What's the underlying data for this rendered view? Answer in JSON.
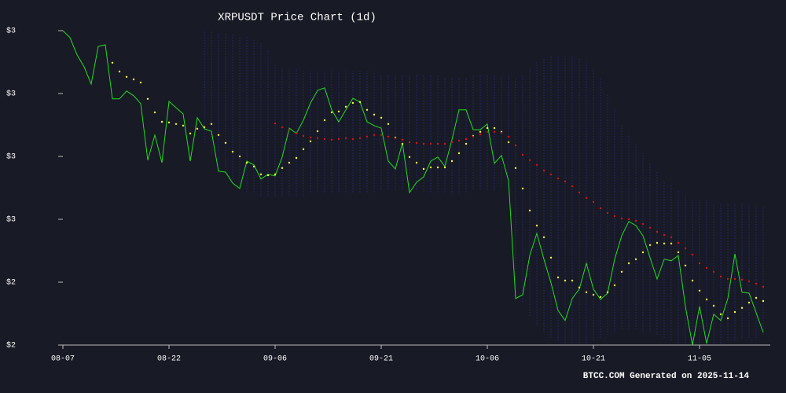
{
  "chart_data": {
    "type": "line",
    "title": "XRPUSDT Price Chart (1d)",
    "footer": "BTCC.COM Generated on 2025-11-14",
    "x": [
      "08-07",
      "08-08",
      "08-09",
      "08-10",
      "08-11",
      "08-12",
      "08-13",
      "08-14",
      "08-15",
      "08-16",
      "08-17",
      "08-18",
      "08-19",
      "08-20",
      "08-21",
      "08-22",
      "08-23",
      "08-24",
      "08-25",
      "08-26",
      "08-27",
      "08-28",
      "08-29",
      "08-30",
      "08-31",
      "09-01",
      "09-02",
      "09-03",
      "09-04",
      "09-05",
      "09-06",
      "09-07",
      "09-08",
      "09-09",
      "09-10",
      "09-11",
      "09-12",
      "09-13",
      "09-14",
      "09-15",
      "09-16",
      "09-17",
      "09-18",
      "09-19",
      "09-20",
      "09-21",
      "09-22",
      "09-23",
      "09-24",
      "09-25",
      "09-26",
      "09-27",
      "09-28",
      "09-29",
      "09-30",
      "10-01",
      "10-02",
      "10-03",
      "10-04",
      "10-05",
      "10-06",
      "10-07",
      "10-08",
      "10-09",
      "10-10",
      "10-11",
      "10-12",
      "10-13",
      "10-14",
      "10-15",
      "10-16",
      "10-17",
      "10-18",
      "10-19",
      "10-20",
      "10-21",
      "10-22",
      "10-23",
      "10-24",
      "10-25",
      "10-26",
      "10-27",
      "10-28",
      "10-29",
      "10-30",
      "10-31",
      "11-01",
      "11-02",
      "11-03",
      "11-04",
      "11-05",
      "11-06",
      "11-07",
      "11-08",
      "11-09",
      "11-10",
      "11-11",
      "11-12",
      "11-13",
      "11-14"
    ],
    "xticks": [
      "08-07",
      "08-22",
      "09-06",
      "09-21",
      "10-06",
      "10-21",
      "11-05"
    ],
    "ylim": [
      2.2,
      3.2
    ],
    "yticks": [
      {
        "value": 3.2,
        "label": "$3"
      },
      {
        "value": 3.0,
        "label": "$3"
      },
      {
        "value": 2.8,
        "label": "$3"
      },
      {
        "value": 2.6,
        "label": "$3"
      },
      {
        "value": 2.4,
        "label": "$2"
      },
      {
        "value": 2.2,
        "label": "$2"
      }
    ],
    "band": {
      "color": "#25257a",
      "upper": [
        null,
        null,
        null,
        null,
        null,
        null,
        null,
        null,
        null,
        null,
        null,
        null,
        null,
        null,
        null,
        null,
        null,
        null,
        null,
        null,
        3.2,
        3.2,
        3.19,
        3.19,
        3.19,
        3.18,
        3.18,
        3.17,
        3.16,
        3.14,
        3.09,
        3.08,
        3.08,
        3.08,
        3.07,
        3.07,
        3.07,
        3.07,
        3.07,
        3.07,
        3.07,
        3.07,
        3.07,
        3.07,
        3.07,
        3.06,
        3.06,
        3.06,
        3.06,
        3.06,
        3.06,
        3.06,
        3.06,
        3.06,
        3.05,
        3.05,
        3.05,
        3.05,
        3.06,
        3.06,
        3.06,
        3.06,
        3.06,
        3.06,
        3.05,
        3.06,
        3.08,
        3.1,
        3.11,
        3.12,
        3.12,
        3.12,
        3.12,
        3.11,
        3.1,
        3.08,
        3.05,
        3.0,
        2.95,
        2.9,
        2.87,
        2.84,
        2.81,
        2.78,
        2.75,
        2.72,
        2.71,
        2.69,
        2.68,
        2.66,
        2.66,
        2.66,
        2.65,
        2.65,
        2.65,
        2.65,
        2.65,
        2.65,
        2.64,
        2.64
      ],
      "lower": [
        null,
        null,
        null,
        null,
        null,
        null,
        null,
        null,
        null,
        null,
        null,
        null,
        null,
        null,
        null,
        null,
        null,
        null,
        null,
        null,
        2.84,
        2.8,
        2.77,
        2.74,
        2.72,
        2.7,
        2.68,
        2.68,
        2.67,
        2.67,
        2.67,
        2.67,
        2.67,
        2.67,
        2.67,
        2.68,
        2.68,
        2.68,
        2.68,
        2.68,
        2.68,
        2.68,
        2.68,
        2.68,
        2.68,
        2.69,
        2.69,
        2.69,
        2.69,
        2.69,
        2.69,
        2.68,
        2.68,
        2.68,
        2.68,
        2.68,
        2.68,
        2.68,
        2.69,
        2.69,
        2.69,
        2.69,
        2.7,
        2.7,
        2.38,
        2.33,
        2.29,
        2.26,
        2.24,
        2.22,
        2.21,
        2.2,
        2.2,
        2.2,
        2.2,
        2.21,
        2.22,
        2.23,
        2.24,
        2.25,
        2.25,
        2.25,
        2.24,
        2.24,
        2.23,
        2.22,
        2.21,
        2.2,
        2.2,
        2.2,
        2.2,
        2.2,
        2.2,
        2.2,
        2.21,
        2.21,
        2.22,
        2.22,
        2.22,
        2.23
      ]
    },
    "series": [
      {
        "style": "line",
        "color": "#22dd22",
        "values": [
          3.2,
          3.178,
          3.123,
          3.085,
          3.03,
          3.15,
          3.155,
          2.983,
          2.983,
          3.008,
          2.993,
          2.968,
          2.788,
          2.868,
          2.78,
          2.975,
          2.955,
          2.935,
          2.785,
          2.923,
          2.888,
          2.88,
          2.753,
          2.75,
          2.715,
          2.698,
          2.785,
          2.773,
          2.728,
          2.743,
          2.738,
          2.798,
          2.89,
          2.873,
          2.915,
          2.97,
          3.01,
          3.018,
          2.948,
          2.91,
          2.948,
          2.985,
          2.973,
          2.91,
          2.898,
          2.89,
          2.785,
          2.76,
          2.843,
          2.685,
          2.718,
          2.735,
          2.785,
          2.798,
          2.768,
          2.853,
          2.948,
          2.948,
          2.885,
          2.885,
          2.903,
          2.778,
          2.803,
          2.723,
          2.348,
          2.36,
          2.485,
          2.555,
          2.473,
          2.398,
          2.31,
          2.278,
          2.348,
          2.378,
          2.46,
          2.378,
          2.345,
          2.365,
          2.473,
          2.548,
          2.593,
          2.58,
          2.548,
          2.478,
          2.41,
          2.473,
          2.468,
          2.485,
          2.323,
          2.2,
          2.323,
          2.205,
          2.298,
          2.278,
          2.348,
          2.49,
          2.368,
          2.365,
          2.303,
          2.24
        ]
      },
      {
        "style": "dots",
        "color": "#ffff33",
        "values": [
          null,
          null,
          null,
          null,
          null,
          null,
          null,
          3.098,
          3.07,
          3.053,
          3.045,
          3.035,
          2.983,
          2.94,
          2.91,
          2.908,
          2.903,
          2.898,
          2.873,
          2.888,
          2.893,
          2.903,
          2.868,
          2.843,
          2.815,
          2.8,
          2.78,
          2.768,
          2.743,
          2.74,
          2.743,
          2.763,
          2.78,
          2.795,
          2.823,
          2.848,
          2.88,
          2.915,
          2.94,
          2.943,
          2.958,
          2.97,
          2.973,
          2.948,
          2.933,
          2.923,
          2.903,
          2.86,
          2.84,
          2.798,
          2.78,
          2.76,
          2.765,
          2.765,
          2.765,
          2.785,
          2.81,
          2.84,
          2.865,
          2.878,
          2.89,
          2.89,
          2.878,
          2.845,
          2.763,
          2.698,
          2.628,
          2.58,
          2.543,
          2.478,
          2.415,
          2.405,
          2.405,
          2.383,
          2.368,
          2.36,
          2.353,
          2.368,
          2.39,
          2.433,
          2.46,
          2.473,
          2.495,
          2.518,
          2.525,
          2.523,
          2.523,
          2.495,
          2.453,
          2.405,
          2.373,
          2.345,
          2.325,
          2.298,
          2.285,
          2.305,
          2.318,
          2.335,
          2.35,
          2.34
        ]
      },
      {
        "style": "dots",
        "color": "#dd1111",
        "values": [
          null,
          null,
          null,
          null,
          null,
          null,
          null,
          null,
          null,
          null,
          null,
          null,
          null,
          null,
          null,
          null,
          null,
          null,
          null,
          null,
          null,
          null,
          null,
          null,
          null,
          null,
          null,
          null,
          null,
          null,
          2.905,
          2.893,
          2.885,
          2.873,
          2.865,
          2.86,
          2.858,
          2.855,
          2.853,
          2.855,
          2.858,
          2.855,
          2.858,
          2.863,
          2.868,
          2.868,
          2.863,
          2.858,
          2.853,
          2.845,
          2.843,
          2.84,
          2.84,
          2.84,
          2.84,
          2.845,
          2.85,
          2.855,
          2.863,
          2.87,
          2.878,
          2.878,
          2.875,
          2.863,
          2.835,
          2.805,
          2.788,
          2.773,
          2.755,
          2.743,
          2.73,
          2.72,
          2.705,
          2.685,
          2.668,
          2.655,
          2.635,
          2.62,
          2.61,
          2.603,
          2.6,
          2.595,
          2.585,
          2.573,
          2.56,
          2.55,
          2.543,
          2.525,
          2.508,
          2.488,
          2.46,
          2.445,
          2.433,
          2.418,
          2.41,
          2.41,
          2.408,
          2.403,
          2.395,
          2.385
        ]
      }
    ]
  }
}
